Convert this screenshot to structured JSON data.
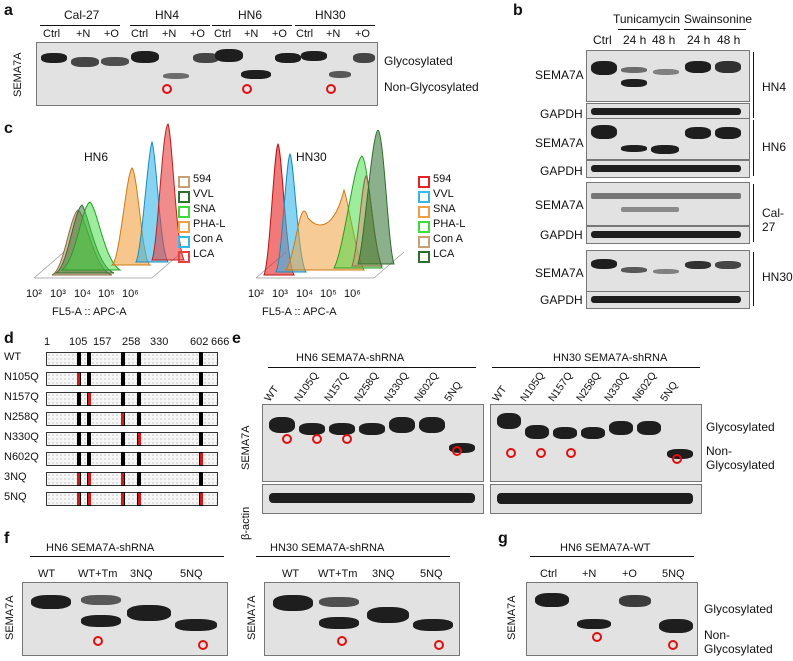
{
  "panel_a": {
    "letter": "a",
    "groups": [
      "Cal-27",
      "HN4",
      "HN6",
      "HN30"
    ],
    "lanes": [
      "Ctrl",
      "+N",
      "+O",
      "Ctrl",
      "+N",
      "+O",
      "Ctrl",
      "+N",
      "+O",
      "Ctrl",
      "+N",
      "+O"
    ],
    "ylabel": "SEMA7A",
    "right_labels": [
      "Glycosylated",
      "Non-Glycosylated"
    ]
  },
  "panel_b": {
    "letter": "b",
    "treatments": [
      "Tunicamycin",
      "Swainsonine"
    ],
    "lanes": [
      "Ctrl",
      "24 h",
      "48 h",
      "24 h",
      "48 h"
    ],
    "rows": [
      {
        "group": "HN4",
        "labels": [
          "SEMA7A",
          "GAPDH"
        ]
      },
      {
        "group": "HN6",
        "labels": [
          "SEMA7A",
          "GAPDH"
        ]
      },
      {
        "group": "Cal-27",
        "labels": [
          "SEMA7A",
          "GAPDH"
        ]
      },
      {
        "group": "HN30",
        "labels": [
          "SEMA7A",
          "GAPDH"
        ]
      }
    ]
  },
  "panel_c": {
    "letter": "c",
    "plots": [
      {
        "title": "HN6",
        "xlabel": "FL5-A :: APC-A",
        "ticks": [
          "10²",
          "10³",
          "10⁴",
          "10⁵",
          "10⁶"
        ],
        "legend": [
          {
            "name": "594",
            "color": "#c8a078"
          },
          {
            "name": "VVL",
            "color": "#2e6e2e"
          },
          {
            "name": "SNA",
            "color": "#3ddc3d"
          },
          {
            "name": "PHA-L",
            "color": "#f0a040"
          },
          {
            "name": "Con A",
            "color": "#35b8e8"
          },
          {
            "name": "LCA",
            "color": "#e84040"
          }
        ]
      },
      {
        "title": "HN30",
        "xlabel": "FL5-A :: APC-A",
        "ticks": [
          "10²",
          "10³",
          "10⁴",
          "10⁵",
          "10⁶"
        ],
        "legend": [
          {
            "name": "594",
            "color": "#e82020"
          },
          {
            "name": "VVL",
            "color": "#35b8e8"
          },
          {
            "name": "SNA",
            "color": "#f0a040"
          },
          {
            "name": "PHA-L",
            "color": "#3ddc3d"
          },
          {
            "name": "Con A",
            "color": "#c8a078"
          },
          {
            "name": "LCA",
            "color": "#2e6e2e"
          }
        ]
      }
    ]
  },
  "panel_d": {
    "letter": "d",
    "positions": [
      "1",
      "105",
      "157",
      "258",
      "330",
      "602",
      "666"
    ],
    "constructs": [
      "WT",
      "N105Q",
      "N157Q",
      "N258Q",
      "N330Q",
      "N602Q",
      "3NQ",
      "5NQ"
    ]
  },
  "panel_e": {
    "letter": "e",
    "blots": [
      {
        "title": "HN6 SEMA7A-shRNA",
        "lanes": [
          "WT",
          "N105Q",
          "N157Q",
          "N258Q",
          "N330Q",
          "N602Q",
          "5NQ"
        ]
      },
      {
        "title": "HN30 SEMA7A-shRNA",
        "lanes": [
          "WT",
          "N105Q",
          "N157Q",
          "N258Q",
          "N330Q",
          "N602Q",
          "5NQ"
        ]
      }
    ],
    "ylabels": [
      "SEMA7A",
      "β-actin"
    ],
    "right_labels": [
      "Glycosylated",
      "Non-Glycosylated"
    ]
  },
  "panel_f": {
    "letter": "f",
    "blots": [
      {
        "title": "HN6 SEMA7A-shRNA",
        "lanes": [
          "WT",
          "WT+Tm",
          "3NQ",
          "5NQ"
        ],
        "ylabel": "SEMA7A"
      },
      {
        "title": "HN30 SEMA7A-shRNA",
        "lanes": [
          "WT",
          "WT+Tm",
          "3NQ",
          "5NQ"
        ],
        "ylabel": "SEMA7A"
      }
    ]
  },
  "panel_g": {
    "letter": "g",
    "title": "HN6 SEMA7A-WT",
    "lanes": [
      "Ctrl",
      "+N",
      "+O",
      "5NQ"
    ],
    "ylabel": "SEMA7A",
    "right_labels": [
      "Glycosylated",
      "Non-Glycosylated"
    ]
  }
}
